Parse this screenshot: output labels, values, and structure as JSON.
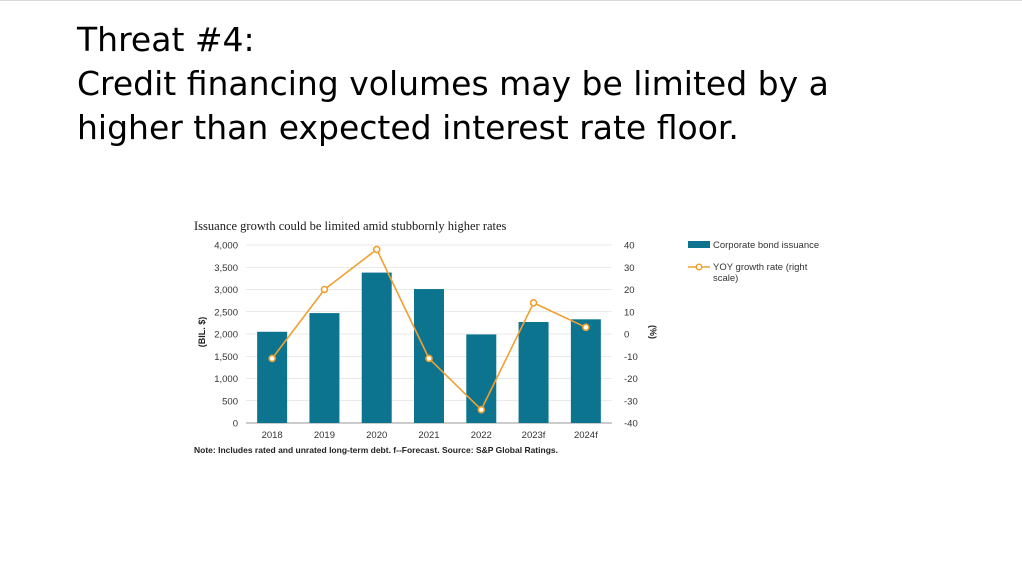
{
  "slide": {
    "title_line1": "Threat #4:",
    "title_line2": "Credit financing volumes may be limited by a",
    "title_line3": "higher than expected interest rate floor."
  },
  "colors": {
    "bar": "#0d7490",
    "line": "#f0a030",
    "grid": "#d6d6d6"
  },
  "chart_data": {
    "type": "bar",
    "title": "Issuance growth could be limited amid stubbornly higher rates",
    "categories": [
      "2018",
      "2019",
      "2020",
      "2021",
      "2022",
      "2023f",
      "2024f"
    ],
    "ylabel": "(BIL. $)",
    "y2label": "(%)",
    "ylim": [
      0,
      4000
    ],
    "y2lim": [
      -40,
      40
    ],
    "yticks": [
      "4,000",
      "3,500",
      "3,000",
      "2,500",
      "2,000",
      "1,500",
      "1,000",
      "500",
      "0"
    ],
    "y2ticks": [
      "40",
      "30",
      "20",
      "10",
      "0",
      "-10",
      "-20",
      "-30",
      "-40"
    ],
    "grid": true,
    "legend_position": "right",
    "series": [
      {
        "name": "Corporate bond issuance",
        "type": "bar",
        "axis": "left",
        "values": [
          2050,
          2470,
          3380,
          3010,
          1990,
          2270,
          2330
        ]
      },
      {
        "name": "YOY growth rate (right scale)",
        "type": "line",
        "axis": "right",
        "values": [
          -11,
          20,
          38,
          -11,
          -34,
          14,
          3
        ]
      }
    ],
    "note": "Note: Includes rated and unrated long-term debt. f--Forecast. Source: S&P Global Ratings."
  }
}
